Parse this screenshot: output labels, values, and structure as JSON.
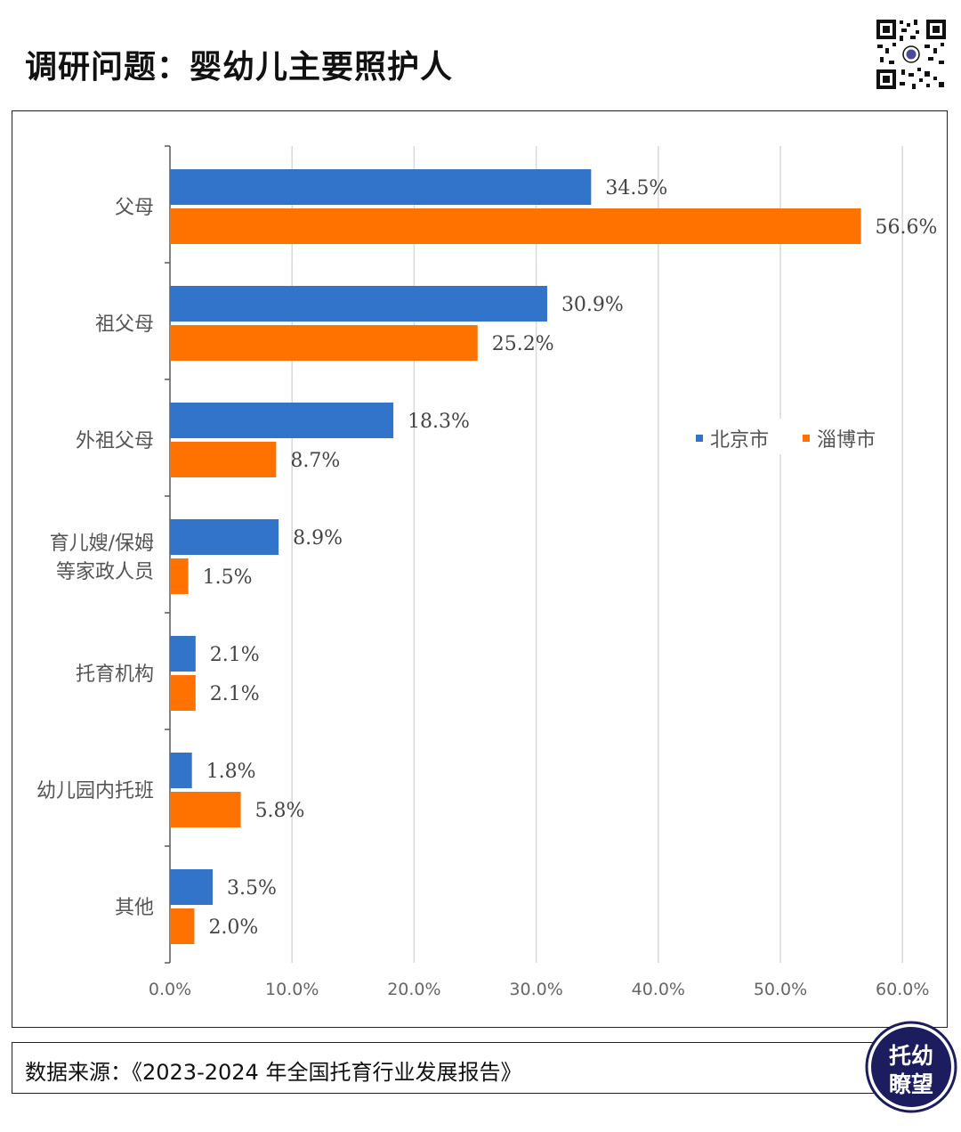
{
  "page_title": "调研问题：婴幼儿主要照护人",
  "source": "数据来源：《2023-2024 年全国托育行业发展报告》",
  "brand": {
    "line1": "托幼",
    "line2": "瞭望"
  },
  "colors": {
    "beijing": "#3374CB",
    "zibo": "#FF7200",
    "grid": "#D9D9D9",
    "axis": "#595959"
  },
  "chart_data": {
    "type": "bar",
    "orientation": "horizontal",
    "categories": [
      "父母",
      "祖父母",
      "外祖父母",
      "育儿嫂/保姆等家政人员",
      "托育机构",
      "幼儿园内托班",
      "其他"
    ],
    "category_lines": [
      [
        "父母"
      ],
      [
        "祖父母"
      ],
      [
        "外祖父母"
      ],
      [
        "育儿嫂/保姆",
        "等家政人员"
      ],
      [
        "托育机构"
      ],
      [
        "幼儿园内托班"
      ],
      [
        "其他"
      ]
    ],
    "series": [
      {
        "name": "北京市",
        "values": [
          34.5,
          30.9,
          18.3,
          8.9,
          2.1,
          1.8,
          3.5
        ],
        "labels": [
          "34.5%",
          "30.9%",
          "18.3%",
          "8.9%",
          "2.1%",
          "1.8%",
          "3.5%"
        ]
      },
      {
        "name": "淄博市",
        "values": [
          56.6,
          25.2,
          8.7,
          1.5,
          2.1,
          5.8,
          2.0
        ],
        "labels": [
          "56.6%",
          "25.2%",
          "8.7%",
          "1.5%",
          "2.1%",
          "5.8%",
          "2.0%"
        ]
      }
    ],
    "xlim": [
      0,
      60
    ],
    "xticks": [
      0,
      10,
      20,
      30,
      40,
      50,
      60
    ],
    "xtick_labels": [
      "0.0%",
      "10.0%",
      "20.0%",
      "30.0%",
      "40.0%",
      "50.0%",
      "60.0%"
    ],
    "grid": true,
    "legend_position": "top-right"
  }
}
